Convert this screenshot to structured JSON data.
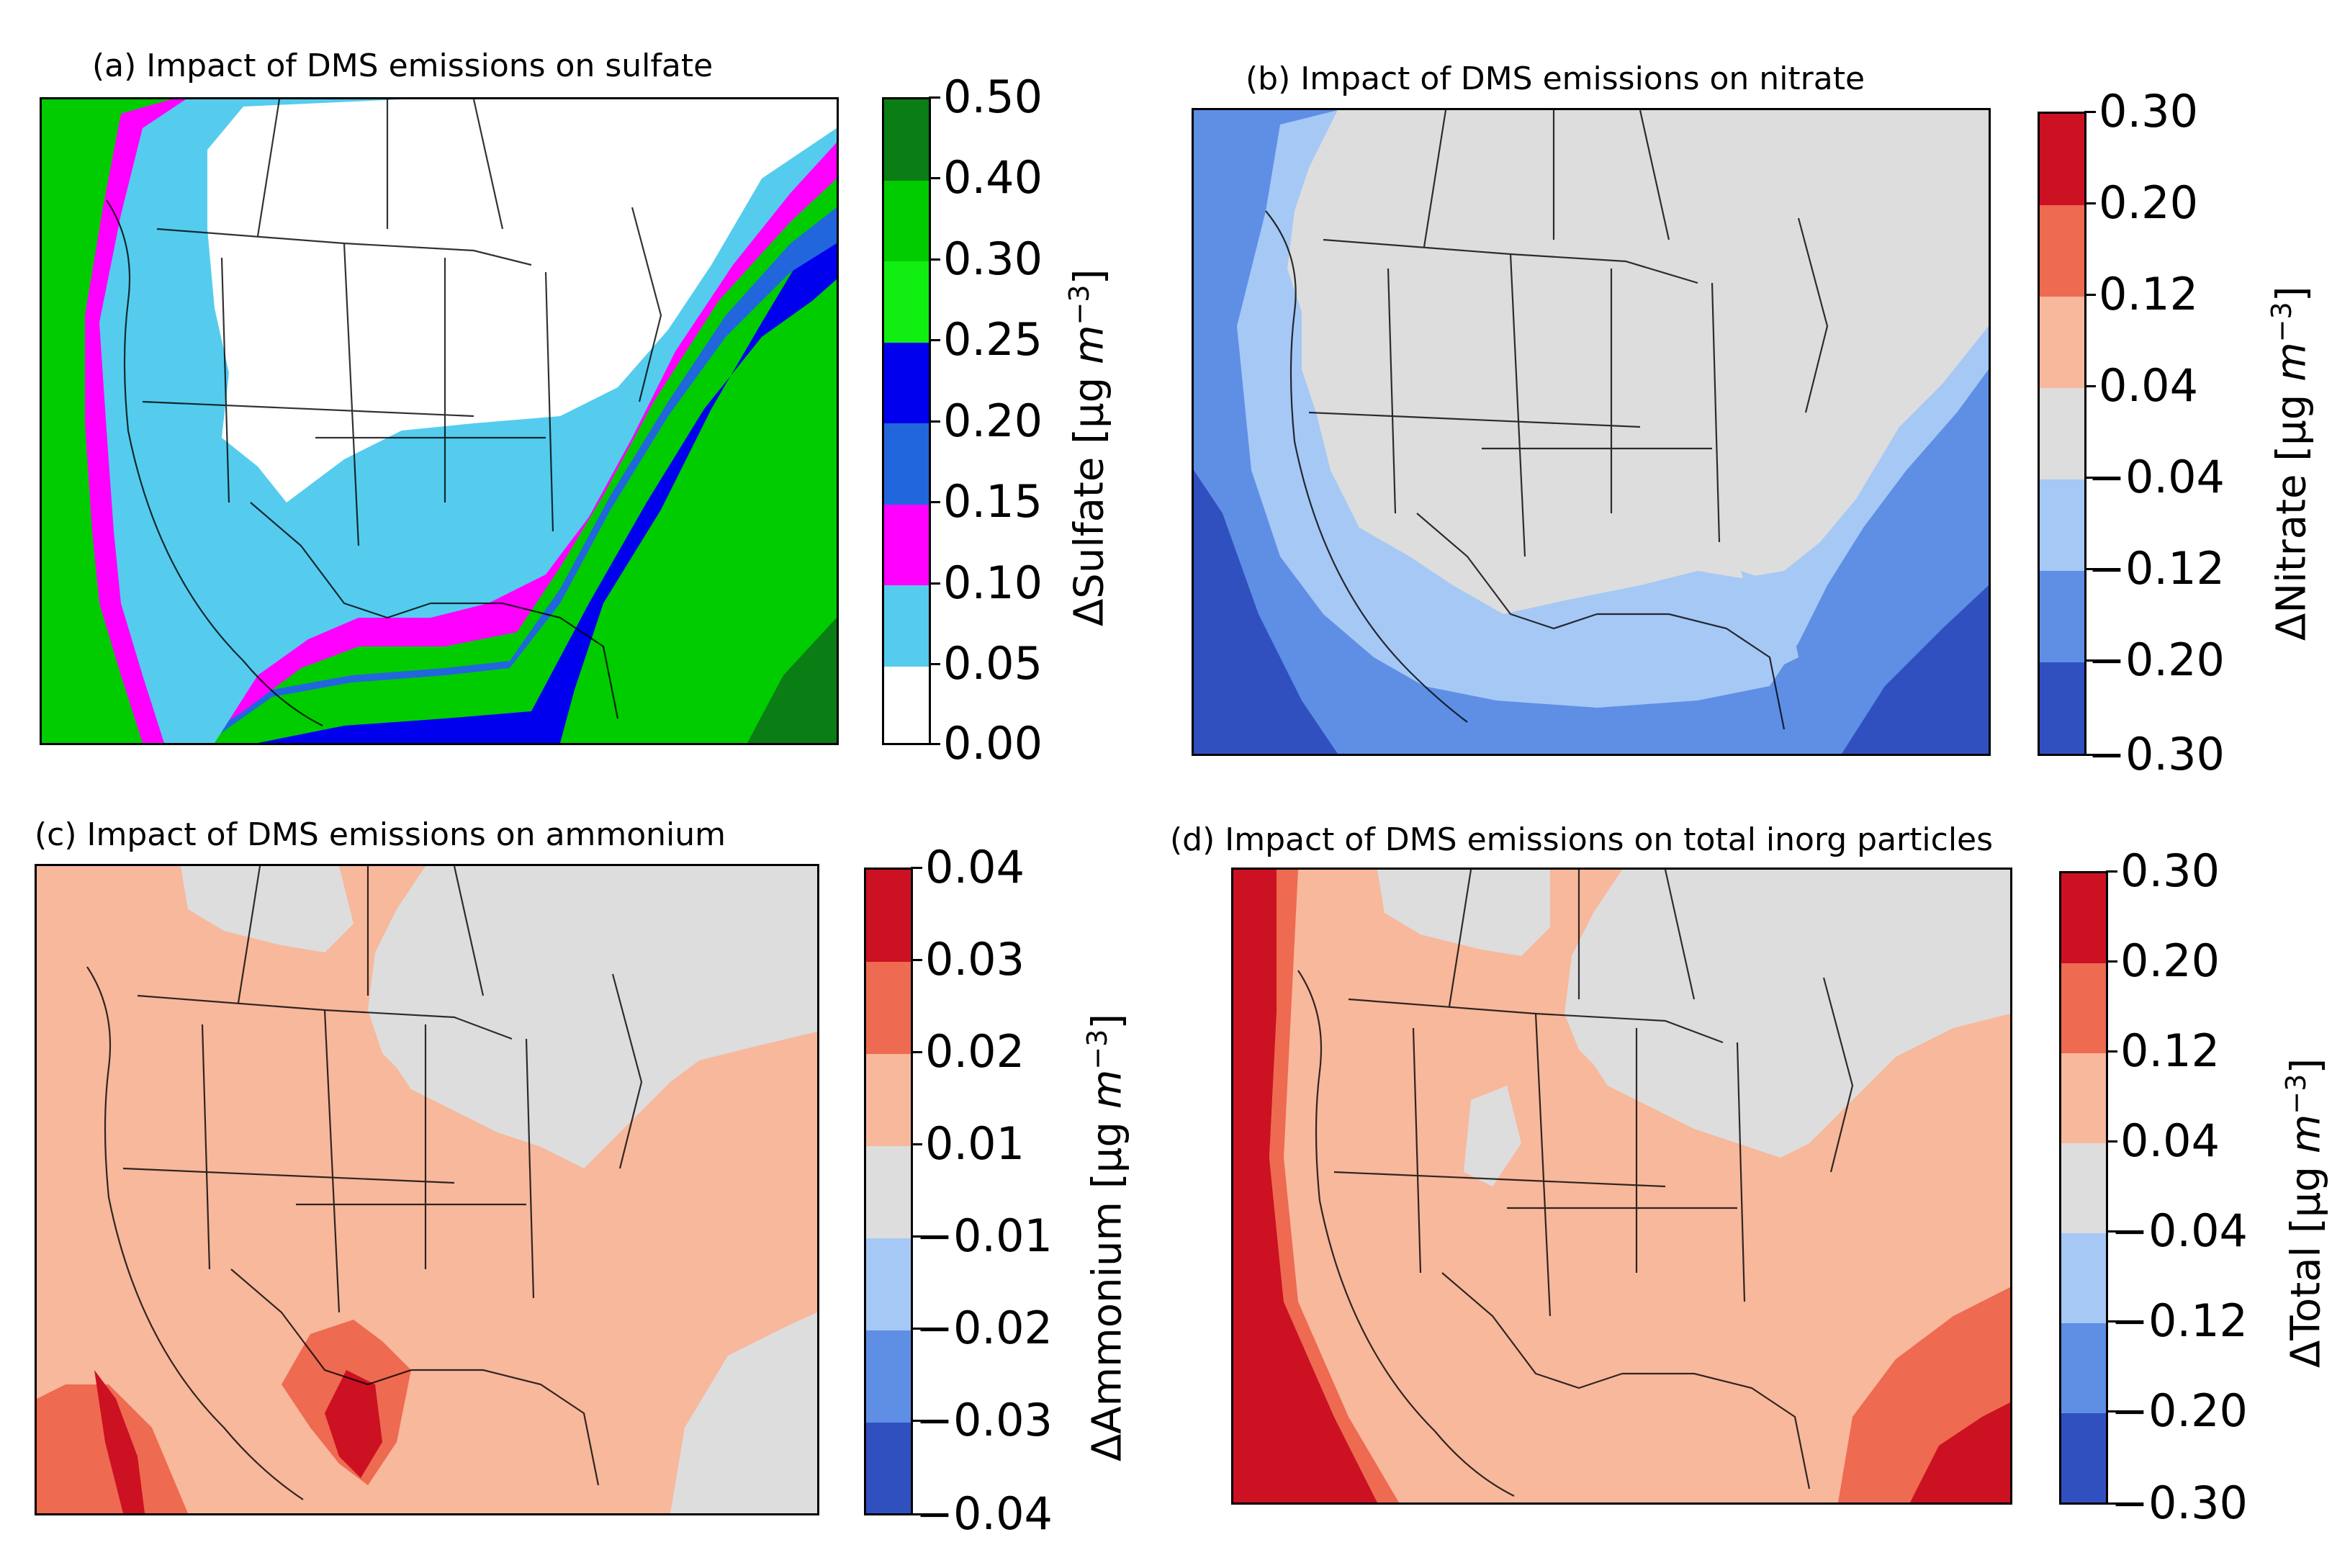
{
  "panels": [
    {
      "id": "a",
      "title": "(a) Impact of DMS emissions on sulfate",
      "variable": "ΔSulfate",
      "unit_prefix": "[μg ",
      "unit_m": "m",
      "unit_exp": "−3",
      "unit_suffix": "]",
      "ticks": [
        "0.50",
        "0.40",
        "0.30",
        "0.25",
        "0.20",
        "0.15",
        "0.10",
        "0.05",
        "0.00"
      ],
      "colors": [
        "#0a7d14",
        "#00cc00",
        "#11ee11",
        "#0000ee",
        "#2266dd",
        "#ff00ff",
        "#55ccee",
        "#ffffff"
      ],
      "map_colors": {
        "ocean_far": "#00cc00",
        "ocean_mid": "#0000ee",
        "ocean_near": "#ff00ff",
        "coast": "#55ccee",
        "land": "#ffffff"
      }
    },
    {
      "id": "b",
      "title": "(b) Impact of DMS emissions on nitrate",
      "variable": "ΔNitrate",
      "unit_prefix": "[μg ",
      "unit_m": "m",
      "unit_exp": "−3",
      "unit_suffix": "]",
      "ticks": [
        "0.30",
        "0.20",
        "0.12",
        "0.04",
        "−0.04",
        "−0.12",
        "−0.20",
        "−0.30"
      ],
      "colors": [
        "#cc1122",
        "#ee6a50",
        "#f7b89c",
        "#dddddd",
        "#a6c8f5",
        "#5e8fe5",
        "#3050c0"
      ],
      "map_colors": {
        "ocean_far": "#3050c0",
        "ocean_mid": "#5e8fe5",
        "ocean_near": "#a6c8f5",
        "land": "#dddddd"
      }
    },
    {
      "id": "c",
      "title": "(c) Impact of DMS emissions on ammonium",
      "variable": "ΔAmmonium",
      "unit_prefix": "[μg ",
      "unit_m": "m",
      "unit_exp": "−3",
      "unit_suffix": "]",
      "ticks": [
        "0.04",
        "0.03",
        "0.02",
        "0.01",
        "−0.01",
        "−0.02",
        "−0.03",
        "−0.04"
      ],
      "colors": [
        "#cc1122",
        "#ee6a50",
        "#f7b89c",
        "#dddddd",
        "#a6c8f5",
        "#5e8fe5",
        "#3050c0"
      ],
      "map_colors": {
        "land": "#f7b89c",
        "canada": "#dddddd",
        "hot": "#ee6a50",
        "hottest": "#cc1122"
      }
    },
    {
      "id": "d",
      "title": "(d) Impact of DMS emissions on total inorg particles",
      "variable": "ΔTotal",
      "unit_prefix": "[μg ",
      "unit_m": "m",
      "unit_exp": "−3",
      "unit_suffix": "]",
      "ticks": [
        "0.30",
        "0.20",
        "0.12",
        "0.04",
        "−0.04",
        "−0.12",
        "−0.20",
        "−0.30"
      ],
      "colors": [
        "#cc1122",
        "#ee6a50",
        "#f7b89c",
        "#dddddd",
        "#a6c8f5",
        "#5e8fe5",
        "#3050c0"
      ],
      "map_colors": {
        "land": "#f7b89c",
        "canada": "#dddddd",
        "hot": "#ee6a50",
        "hottest": "#cc1122"
      }
    }
  ]
}
